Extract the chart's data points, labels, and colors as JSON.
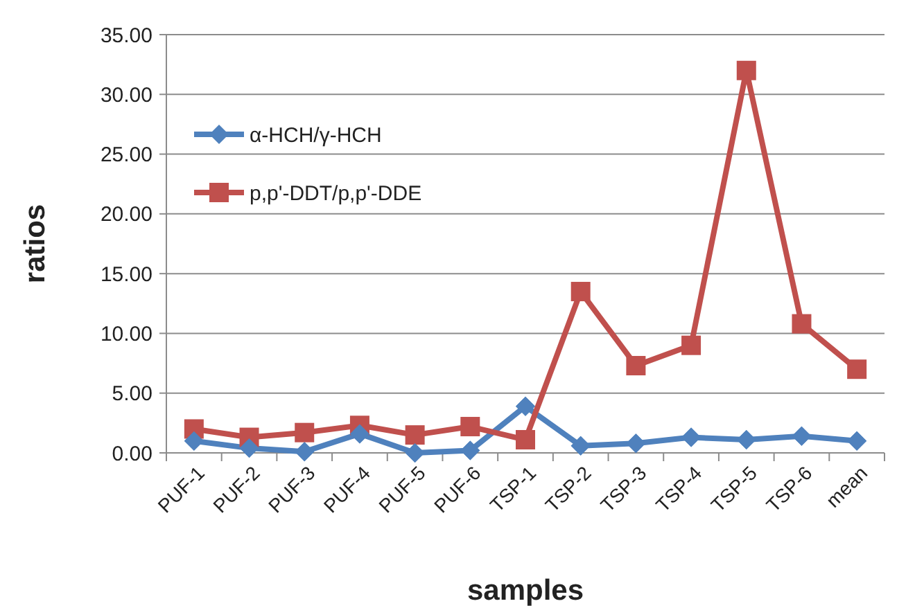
{
  "chart_data": {
    "type": "line",
    "xlabel": "samples",
    "ylabel": "ratios",
    "categories": [
      "PUF-1",
      "PUF-2",
      "PUF-3",
      "PUF-4",
      "PUF-5",
      "PUF-6",
      "TSP-1",
      "TSP-2",
      "TSP-3",
      "TSP-4",
      "TSP-5",
      "TSP-6",
      "mean"
    ],
    "series": [
      {
        "name": "α-HCH/γ-HCH",
        "color": "#4f81bd",
        "marker": "diamond",
        "values": [
          1.0,
          0.4,
          0.1,
          1.6,
          0.0,
          0.2,
          3.9,
          0.6,
          0.8,
          1.3,
          1.1,
          1.4,
          1.0
        ]
      },
      {
        "name": "p,p'-DDT/p,p'-DDE",
        "color": "#c0504d",
        "marker": "square",
        "values": [
          2.0,
          1.3,
          1.7,
          2.3,
          1.5,
          2.2,
          1.1,
          13.5,
          7.3,
          9.0,
          32.0,
          10.8,
          7.0
        ]
      }
    ],
    "ylim": [
      0,
      35
    ],
    "yticks": [
      {
        "value": 0,
        "label": "0.00"
      },
      {
        "value": 5,
        "label": "5.00"
      },
      {
        "value": 10,
        "label": "10.00"
      },
      {
        "value": 15,
        "label": "15.00"
      },
      {
        "value": 20,
        "label": "20.00"
      },
      {
        "value": 25,
        "label": "25.00"
      },
      {
        "value": 30,
        "label": "30.00"
      },
      {
        "value": 35,
        "label": "35.00"
      }
    ],
    "grid": "y",
    "legend": "top left",
    "line_style": "solid"
  }
}
